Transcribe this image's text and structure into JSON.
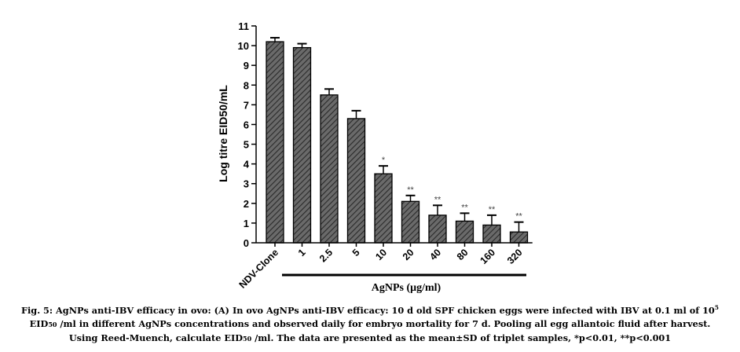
{
  "chart_data": {
    "type": "bar",
    "categories": [
      "NDV-Clone",
      "1",
      "2.5",
      "5",
      "10",
      "20",
      "40",
      "80",
      "160",
      "320"
    ],
    "values": [
      10.2,
      9.9,
      7.5,
      6.3,
      3.5,
      2.1,
      1.4,
      1.1,
      0.9,
      0.55
    ],
    "errors": [
      0.2,
      0.2,
      0.3,
      0.4,
      0.4,
      0.3,
      0.5,
      0.4,
      0.5,
      0.5
    ],
    "significance": [
      "",
      "",
      "",
      "",
      "*",
      "**",
      "**",
      "**",
      "**",
      "**"
    ],
    "ylabel": "Log titre EID50/mL",
    "xgroup_label": "AgNPs (μg/ml)",
    "ylim": [
      0,
      11
    ],
    "yticks": [
      "0",
      "1",
      "2",
      "3",
      "4",
      "5",
      "6",
      "7",
      "8",
      "9",
      "10",
      "11"
    ],
    "grid": false,
    "bar_fill": "#555555"
  },
  "caption": {
    "line1_pre": "Fig. 5: AgNPs anti-IBV efficacy in ovo: (A) In ovo AgNPs anti-IBV efficacy: 10 d old SPF chicken eggs were infected with IBV at 0.1 ml of 10",
    "line1_sup": "5",
    "line2_a": "EID",
    "line2_sub": "50",
    "line2_b": " /ml in different AgNPs concentrations and observed daily for embryo mortality for 7 d. Pooling all egg allantoic fluid after harvest.",
    "line3_a": "Using Reed-Muench, calculate EID",
    "line3_sub": "50",
    "line3_b": " /ml. The data are presented as the mean±SD of triplet samples, *p<0.01, **p<0.001"
  }
}
